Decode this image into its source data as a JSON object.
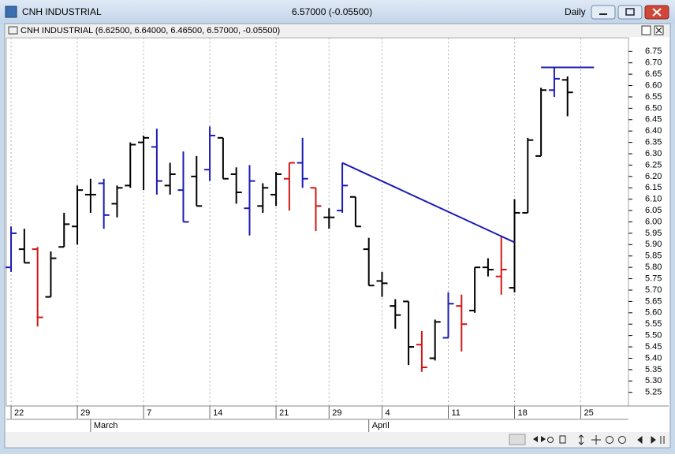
{
  "window": {
    "title": "CNH INDUSTRIAL",
    "quote": "6.57000 (-0.05500)",
    "period": "Daily"
  },
  "chart_data": {
    "type": "ohlc",
    "title": "CNH INDUSTRIAL (6.62500, 6.64000, 6.46500, 6.57000, -0.05500)",
    "open": [
      5.8,
      5.88,
      5.88,
      5.67,
      5.89,
      5.98,
      6.12,
      6.17,
      6.08,
      6.16,
      6.35,
      6.33,
      6.16,
      6.14,
      6.2,
      6.23,
      6.37,
      6.21,
      6.06,
      6.07,
      6.12,
      6.19,
      6.26,
      6.15,
      6.02,
      6.05,
      6.11,
      5.88,
      5.74,
      5.63,
      5.65,
      5.46,
      5.4,
      5.49,
      5.63,
      5.61,
      5.8,
      5.76,
      5.71,
      6.04,
      6.29,
      6.58,
      6.625
    ],
    "high": [
      5.98,
      5.97,
      5.89,
      5.87,
      6.04,
      6.16,
      6.19,
      6.19,
      6.16,
      6.35,
      6.38,
      6.41,
      6.26,
      6.31,
      6.29,
      6.42,
      6.37,
      6.24,
      6.25,
      6.17,
      6.22,
      6.26,
      6.37,
      6.15,
      6.06,
      6.26,
      6.11,
      5.93,
      5.78,
      5.66,
      5.65,
      5.52,
      5.57,
      5.69,
      5.68,
      5.8,
      5.84,
      5.94,
      6.1,
      6.37,
      6.59,
      6.68,
      6.64
    ],
    "low": [
      5.78,
      5.82,
      5.54,
      5.67,
      5.89,
      5.9,
      6.04,
      5.97,
      6.02,
      6.15,
      6.14,
      6.12,
      6.12,
      6.0,
      6.07,
      6.18,
      6.19,
      6.08,
      5.94,
      6.04,
      6.07,
      6.05,
      6.15,
      5.96,
      5.97,
      6.04,
      5.98,
      5.72,
      5.67,
      5.53,
      5.37,
      5.34,
      5.39,
      5.49,
      5.43,
      5.6,
      5.76,
      5.68,
      5.69,
      6.04,
      6.29,
      6.55,
      6.465
    ],
    "close": [
      5.95,
      5.82,
      5.58,
      5.84,
      5.99,
      6.14,
      6.12,
      6.03,
      6.15,
      6.34,
      6.37,
      6.18,
      6.21,
      6.0,
      6.07,
      6.38,
      6.19,
      6.13,
      6.18,
      6.15,
      6.21,
      6.26,
      6.19,
      6.07,
      6.02,
      6.16,
      5.98,
      5.72,
      5.73,
      5.59,
      5.45,
      5.36,
      5.56,
      5.64,
      5.55,
      5.8,
      5.79,
      5.79,
      6.04,
      6.36,
      6.58,
      6.63,
      6.57
    ],
    "colors": [
      "#1c1cb4",
      "#000000",
      "#d01818",
      "#000000",
      "#000000",
      "#000000",
      "#000000",
      "#1c1cb4",
      "#000000",
      "#000000",
      "#000000",
      "#1c1cb4",
      "#000000",
      "#1c1cb4",
      "#000000",
      "#1c1cb4",
      "#000000",
      "#000000",
      "#1c1cb4",
      "#000000",
      "#000000",
      "#d01818",
      "#1c1cb4",
      "#d01818",
      "#000000",
      "#1c1cb4",
      "#000000",
      "#000000",
      "#000000",
      "#000000",
      "#000000",
      "#d01818",
      "#000000",
      "#1c1cb4",
      "#d01818",
      "#000000",
      "#000000",
      "#d01818",
      "#000000",
      "#000000",
      "#000000",
      "#1c1cb4",
      "#000000"
    ],
    "lines": [
      {
        "x": [
          25,
          38
        ],
        "y": [
          6.26,
          5.91
        ],
        "color": "#1c1cb4"
      },
      {
        "x": [
          40,
          44
        ],
        "y": [
          6.68,
          6.68
        ],
        "color": "#1c1cb4"
      }
    ],
    "xlim": [
      -0.36,
      46.6
    ],
    "xticks": [
      {
        "value": 0,
        "label": "22"
      },
      {
        "value": 5,
        "label": "29"
      },
      {
        "value": 10,
        "label": "7"
      },
      {
        "value": 15,
        "label": "14"
      },
      {
        "value": 20,
        "label": "21"
      },
      {
        "value": 24,
        "label": "29"
      },
      {
        "value": 28,
        "label": "4"
      },
      {
        "value": 33,
        "label": "11"
      },
      {
        "value": 38,
        "label": "18"
      },
      {
        "value": 43,
        "label": "25"
      }
    ],
    "month_ticks": [
      {
        "value": 6,
        "label": "March"
      },
      {
        "value": 27,
        "label": "April"
      }
    ],
    "ylim": [
      5.19,
      6.81
    ],
    "yticks": [
      6.75,
      {
        "value": 6.7,
        "label": "6.70"
      },
      6.65,
      {
        "value": 6.6,
        "label": "6.60"
      },
      6.55,
      {
        "value": 6.5,
        "label": "6.50"
      },
      6.45,
      {
        "value": 6.4,
        "label": "6.40"
      },
      6.35,
      {
        "value": 6.3,
        "label": "6.30"
      },
      6.25,
      {
        "value": 6.2,
        "label": "6.20"
      },
      6.15,
      {
        "value": 6.1,
        "label": "6.10"
      },
      6.05,
      {
        "value": 6,
        "label": "6.00"
      },
      5.95,
      {
        "value": 5.9,
        "label": "5.90"
      },
      5.85,
      {
        "value": 5.8,
        "label": "5.80"
      },
      5.75,
      {
        "value": 5.7,
        "label": "5.70"
      },
      5.65,
      {
        "value": 5.6,
        "label": "5.60"
      },
      5.55,
      {
        "value": 5.5,
        "label": "5.50"
      },
      5.45,
      {
        "value": 5.4,
        "label": "5.40"
      },
      5.35,
      {
        "value": 5.3,
        "label": "5.30"
      },
      5.25
    ],
    "grid": true
  }
}
